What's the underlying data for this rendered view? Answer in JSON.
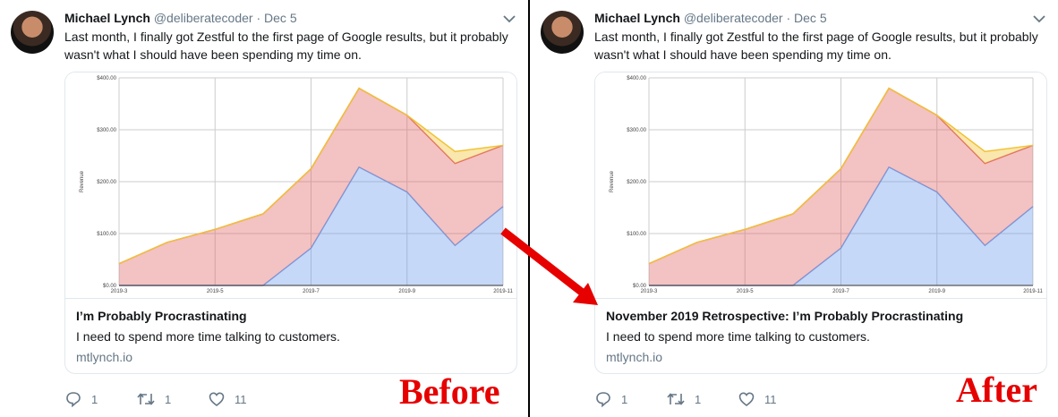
{
  "tweets": [
    {
      "author": "Michael Lynch",
      "handle": "@deliberatecoder",
      "separator": "·",
      "date": "Dec 5",
      "text": "Last month, I finally got Zestful to the first page of Google results, but it probably wasn't what I should have been spending my time on.",
      "card": {
        "title": "I’m Probably Procrastinating",
        "description": "I need to spend more time talking to customers.",
        "domain": "mtlynch.io"
      },
      "actions": {
        "reply_count": "1",
        "retweet_count": "1",
        "like_count": "11"
      },
      "overlay_label": "Before"
    },
    {
      "author": "Michael Lynch",
      "handle": "@deliberatecoder",
      "separator": "·",
      "date": "Dec 5",
      "text": "Last month, I finally got Zestful to the first page of Google results, but it probably wasn't what I should have been spending my time on.",
      "card": {
        "title": "November 2019 Retrospective: I’m Probably Procrastinating",
        "description": "I need to spend more time talking to customers.",
        "domain": "mtlynch.io"
      },
      "actions": {
        "reply_count": "1",
        "retweet_count": "1",
        "like_count": "11"
      },
      "overlay_label": "After"
    }
  ],
  "colors": {
    "arrow": "#e60000",
    "overlay_label": "#e60000",
    "series_blue": "#6d9eeb",
    "series_red": "#e06666",
    "series_yellow": "#f1c232"
  },
  "icons": [
    "reply-icon",
    "retweet-icon",
    "like-icon",
    "chevron-down-icon",
    "arrow-icon"
  ],
  "chart_data": {
    "type": "area",
    "ylabel": "Revenue",
    "ylim": [
      0,
      400
    ],
    "yticks": [
      "$400.00",
      "$300.00",
      "$200.00",
      "$100.00",
      "$0.00"
    ],
    "ytick_values": [
      400,
      300,
      200,
      100,
      0
    ],
    "x": [
      "2019-3",
      "2019-4",
      "2019-5",
      "2019-6",
      "2019-7",
      "2019-8",
      "2019-9",
      "2019-10",
      "2019-11"
    ],
    "xticks": [
      "2019-3",
      "2019-5",
      "2019-7",
      "2019-9",
      "2019-11"
    ],
    "grid": true,
    "stacked": true,
    "series": [
      {
        "color": "#6d9eeb",
        "values": [
          0,
          0,
          0,
          0,
          72,
          228,
          180,
          77,
          152
        ]
      },
      {
        "color": "#e06666",
        "values": [
          42,
          83,
          108,
          138,
          153,
          152,
          148,
          158,
          118
        ]
      },
      {
        "color": "#f1c232",
        "values": [
          0,
          0,
          0,
          0,
          0,
          0,
          0,
          23,
          0
        ]
      }
    ]
  }
}
